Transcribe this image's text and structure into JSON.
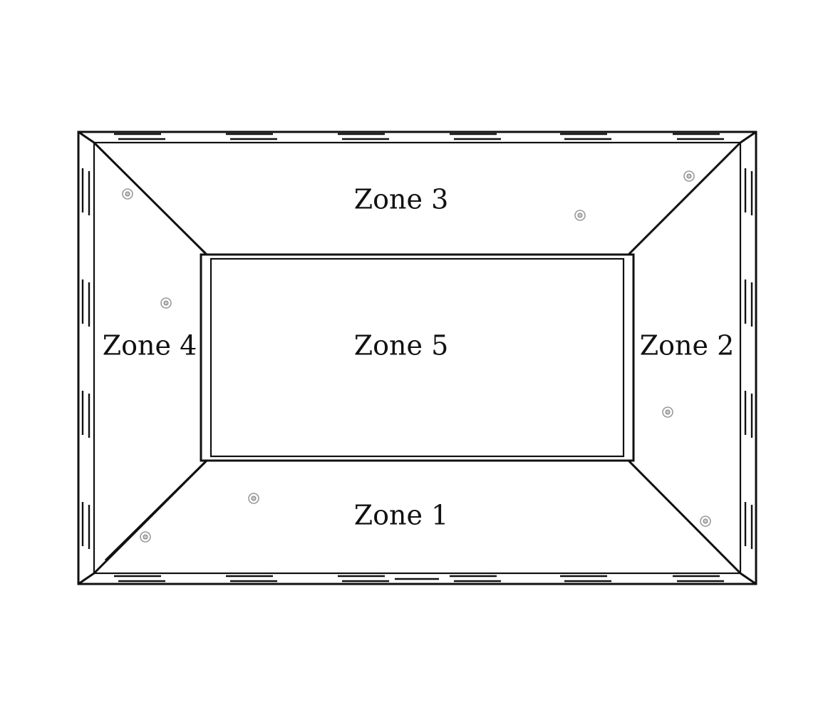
{
  "diagram": {
    "zones": [
      {
        "id": "zone-1",
        "label": "Zone 1"
      },
      {
        "id": "zone-2",
        "label": "Zone 2"
      },
      {
        "id": "zone-3",
        "label": "Zone 3"
      },
      {
        "id": "zone-4",
        "label": "Zone 4"
      },
      {
        "id": "zone-5",
        "label": "Zone 5"
      }
    ],
    "colors": {
      "line": "#111111",
      "background": "#ffffff",
      "fastener": "#9a9a9a"
    }
  }
}
